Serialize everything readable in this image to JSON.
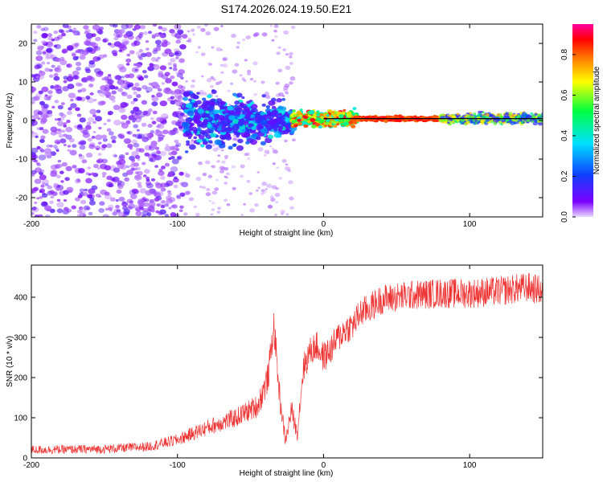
{
  "title": "S174.2026.024.19.50.E21",
  "colors": {
    "series": "#ee3333",
    "frame": "#000000",
    "trace": "#000000"
  },
  "chart_data": [
    {
      "type": "heatmap",
      "title": "S174.2026.024.19.50.E21",
      "xlabel": "Height of straight line (km)",
      "ylabel": "Frequency (Hz)",
      "xlim": [
        -200,
        150
      ],
      "ylim": [
        -25,
        25
      ],
      "xticks": [
        -200,
        -100,
        0,
        100
      ],
      "yticks": [
        -20,
        -10,
        0,
        10,
        20
      ],
      "xtick_labels": [
        "-200",
        "-100",
        "0",
        "100"
      ],
      "ytick_labels": [
        "-20",
        "-10",
        "0",
        "10",
        "20"
      ],
      "center_trace": {
        "x_start": 0,
        "x_end": 150,
        "frequency": 0.5
      },
      "colorbar": {
        "label": "Normalized spectral amplitude",
        "range": [
          0.0,
          0.95
        ],
        "ticks": [
          0.0,
          0.2,
          0.4,
          0.6,
          0.8
        ],
        "tick_labels": [
          "0.0",
          "0.2",
          "0.4",
          "0.6",
          "0.8"
        ],
        "colormap": "rainbow (purple-blue-cyan-green-yellow-red-magenta)"
      },
      "regions": [
        {
          "x_range": [
            -200,
            -95
          ],
          "freq_range": [
            -25,
            25
          ],
          "amplitude": "low, scattered"
        },
        {
          "x_range": [
            -95,
            -20
          ],
          "freq_range": [
            -6,
            6
          ],
          "amplitude": "medium, concentrating"
        },
        {
          "x_range": [
            -20,
            80
          ],
          "freq_range": [
            -1,
            2
          ],
          "amplitude": "high (~0.9)"
        },
        {
          "x_range": [
            80,
            150
          ],
          "freq_range": [
            -1,
            2
          ],
          "amplitude": "medium-high"
        }
      ]
    },
    {
      "type": "line",
      "xlabel": "Height of straight line (km)",
      "ylabel": "SNR (10 * v/v)",
      "xlim": [
        -200,
        150
      ],
      "ylim": [
        0,
        480
      ],
      "xticks": [
        -200,
        -100,
        0,
        100
      ],
      "yticks": [
        0,
        100,
        200,
        300,
        400
      ],
      "xtick_labels": [
        "-200",
        "-100",
        "0",
        "100"
      ],
      "ytick_labels": [
        "0",
        "100",
        "200",
        "300",
        "400"
      ],
      "series": [
        {
          "name": "SNR",
          "color": "#ee3333",
          "x": [
            -200,
            -150,
            -120,
            -100,
            -80,
            -60,
            -45,
            -38,
            -34,
            -32,
            -30,
            -26,
            -22,
            -18,
            -14,
            -10,
            -5,
            0,
            5,
            10,
            15,
            20,
            25,
            30,
            40,
            60,
            80,
            100,
            120,
            140,
            150
          ],
          "y": [
            20,
            22,
            28,
            45,
            75,
            100,
            130,
            200,
            330,
            240,
            150,
            40,
            120,
            60,
            220,
            260,
            280,
            250,
            270,
            300,
            320,
            330,
            360,
            370,
            395,
            405,
            410,
            410,
            415,
            425,
            415
          ],
          "noise_amplitude": 30
        }
      ]
    }
  ]
}
